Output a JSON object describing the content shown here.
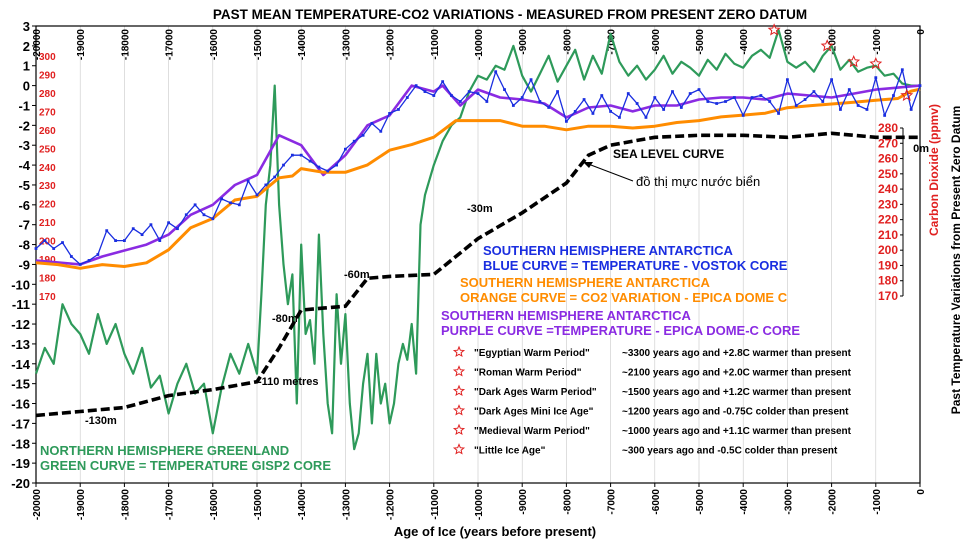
{
  "chart_data": {
    "type": "line",
    "title": "PAST MEAN TEMPERATURE-CO2  VARIATIONS - MEASURED FROM PRESENT  ZERO DATUM",
    "xlabel": "Age of Ice (years before present)",
    "xlim": [
      -20000,
      0
    ],
    "x_ticks": [
      "-20000",
      "-19000",
      "-18000",
      "-17000",
      "-16000",
      "-15000",
      "-14000",
      "-13000",
      "-12000",
      "-11000",
      "-10000",
      "-9000",
      "-8000",
      "-7000",
      "-6000",
      "-5000",
      "-4000",
      "-3000",
      "-2000",
      "-1000",
      "0"
    ],
    "y_left": {
      "label": "",
      "ylim": [
        -20,
        3
      ],
      "ticks": [
        "3",
        "2",
        "1",
        "0",
        "-1",
        "-2",
        "-3",
        "-4",
        "-5",
        "-6",
        "-7",
        "-8",
        "-9",
        "-10",
        "-11",
        "-12",
        "-13",
        "-14",
        "-15",
        "-16",
        "-17",
        "-18",
        "-19",
        "-20"
      ]
    },
    "y_co2": {
      "label": "Carbon Dioxide (ppmv)",
      "ylim": [
        170,
        300
      ],
      "ticks": [
        "300",
        "290",
        "280",
        "270",
        "260",
        "250",
        "240",
        "230",
        "220",
        "210",
        "200",
        "190",
        "180",
        "170"
      ]
    },
    "y_co2_right": {
      "ticks": [
        "280",
        "270",
        "260",
        "250",
        "240",
        "230",
        "220",
        "210",
        "200",
        "190",
        "180",
        "170"
      ]
    },
    "y_right_label": "Past  Temperature  Variations  from  Present  Zero  Datum",
    "series": [
      {
        "name": "Greenland GISP2 temperature",
        "color": "#2e9a5a",
        "x": [
          -20000,
          -19800,
          -19600,
          -19400,
          -19200,
          -19000,
          -18800,
          -18600,
          -18400,
          -18200,
          -18000,
          -17800,
          -17600,
          -17400,
          -17200,
          -17000,
          -16800,
          -16600,
          -16400,
          -16200,
          -16000,
          -15800,
          -15600,
          -15400,
          -15200,
          -15000,
          -14900,
          -14800,
          -14700,
          -14600,
          -14500,
          -14400,
          -14300,
          -14200,
          -14100,
          -14000,
          -13900,
          -13800,
          -13700,
          -13600,
          -13500,
          -13400,
          -13300,
          -13200,
          -13100,
          -13000,
          -12900,
          -12800,
          -12700,
          -12600,
          -12500,
          -12400,
          -12300,
          -12200,
          -12100,
          -12000,
          -11900,
          -11800,
          -11700,
          -11600,
          -11500,
          -11400,
          -11300,
          -11200,
          -11000,
          -10800,
          -10600,
          -10400,
          -10200,
          -10000,
          -9800,
          -9600,
          -9400,
          -9200,
          -9000,
          -8800,
          -8600,
          -8400,
          -8200,
          -8000,
          -7800,
          -7600,
          -7400,
          -7200,
          -7000,
          -6800,
          -6600,
          -6400,
          -6200,
          -6000,
          -5800,
          -5600,
          -5400,
          -5200,
          -5000,
          -4800,
          -4600,
          -4400,
          -4200,
          -4000,
          -3800,
          -3600,
          -3400,
          -3200,
          -3000,
          -2800,
          -2600,
          -2400,
          -2200,
          -2000,
          -1800,
          -1600,
          -1400,
          -1200,
          -1000,
          -800,
          -600,
          -400,
          -200,
          0
        ],
        "y": [
          -14.5,
          -13.2,
          -14.0,
          -11.0,
          -12.0,
          -12.5,
          -13.5,
          -11.5,
          -13.0,
          -12.0,
          -13.5,
          -14.5,
          -13.2,
          -15.2,
          -14.6,
          -16.5,
          -15.0,
          -14.0,
          -15.5,
          -15.0,
          -17.5,
          -15.2,
          -13.5,
          -14.5,
          -13.0,
          -14.5,
          -10.5,
          -6.0,
          -4.0,
          0.0,
          -6.0,
          -9.0,
          -11.0,
          -9.5,
          -16.0,
          -8.0,
          -12.5,
          -11.8,
          -14.0,
          -7.5,
          -12.5,
          -16.0,
          -17.5,
          -10.5,
          -14.0,
          -11.5,
          -16.0,
          -18.3,
          -17.5,
          -15.0,
          -13.5,
          -17.0,
          -13.5,
          -16.0,
          -15.0,
          -17.0,
          -16.0,
          -14.0,
          -13.0,
          -13.8,
          -12.0,
          -14.5,
          -7.0,
          -5.5,
          -4.0,
          -2.8,
          -2.0,
          -1.6,
          -0.3,
          0.5,
          0.3,
          1.0,
          0.8,
          2.0,
          0.5,
          -0.3,
          0.6,
          1.5,
          0.2,
          1.0,
          1.8,
          0.3,
          1.5,
          0.6,
          2.6,
          1.2,
          0.5,
          1.0,
          0.3,
          0.8,
          1.5,
          0.6,
          1.2,
          0.9,
          0.5,
          1.3,
          0.8,
          1.6,
          1.1,
          0.9,
          1.5,
          1.8,
          1.4,
          2.8,
          1.2,
          0.9,
          1.2,
          0.7,
          1.5,
          2.0,
          0.8,
          1.3,
          0.7,
          0.9,
          1.0,
          0.5,
          0.6,
          0.1,
          0.0,
          0.0
        ]
      },
      {
        "name": "Vostok core temperature",
        "color": "#1a2ee0",
        "x": [
          -20000,
          -19800,
          -19600,
          -19400,
          -19200,
          -19000,
          -18800,
          -18600,
          -18400,
          -18200,
          -18000,
          -17800,
          -17600,
          -17400,
          -17200,
          -17000,
          -16800,
          -16600,
          -16400,
          -16200,
          -16000,
          -15800,
          -15600,
          -15400,
          -15200,
          -15000,
          -14800,
          -14600,
          -14400,
          -14200,
          -14000,
          -13800,
          -13600,
          -13400,
          -13200,
          -13000,
          -12800,
          -12600,
          -12400,
          -12200,
          -12000,
          -11800,
          -11600,
          -11400,
          -11200,
          -11000,
          -10800,
          -10600,
          -10400,
          -10200,
          -10000,
          -9800,
          -9600,
          -9400,
          -9200,
          -9000,
          -8800,
          -8600,
          -8400,
          -8200,
          -8000,
          -7800,
          -7600,
          -7400,
          -7200,
          -7000,
          -6800,
          -6600,
          -6400,
          -6200,
          -6000,
          -5800,
          -5600,
          -5400,
          -5200,
          -5000,
          -4800,
          -4600,
          -4400,
          -4200,
          -4000,
          -3800,
          -3600,
          -3400,
          -3200,
          -3000,
          -2800,
          -2600,
          -2400,
          -2200,
          -2000,
          -1800,
          -1600,
          -1400,
          -1200,
          -1000,
          -800,
          -600,
          -400,
          -200,
          0
        ],
        "y": [
          -8.2,
          -7.8,
          -8.2,
          -7.9,
          -8.6,
          -9.0,
          -8.8,
          -8.5,
          -7.3,
          -7.8,
          -7.8,
          -7.2,
          -7.5,
          -7.0,
          -7.8,
          -6.9,
          -7.2,
          -6.5,
          -6.0,
          -6.5,
          -6.7,
          -5.7,
          -5.9,
          -6.0,
          -4.8,
          -5.5,
          -5.0,
          -4.6,
          -4.0,
          -3.5,
          -3.5,
          -3.8,
          -4.1,
          -4.3,
          -4.0,
          -3.2,
          -2.8,
          -2.5,
          -1.9,
          -2.3,
          -1.4,
          -1.2,
          -0.6,
          0.0,
          -0.3,
          -0.5,
          0.2,
          -0.5,
          -0.8,
          -0.3,
          -0.4,
          -0.8,
          0.7,
          -0.2,
          -1.0,
          -0.6,
          0.3,
          -0.8,
          -1.1,
          -0.3,
          -1.8,
          -1.3,
          -0.7,
          -1.4,
          -0.5,
          -1.3,
          -1.6,
          -0.4,
          -0.9,
          -1.6,
          -0.6,
          -1.2,
          -0.3,
          -1.1,
          -0.4,
          -0.2,
          -0.8,
          -0.9,
          -0.8,
          -0.6,
          -1.5,
          -0.6,
          -0.5,
          -0.8,
          -1.4,
          0.3,
          -1.0,
          -0.7,
          -0.3,
          -0.8,
          0.3,
          -1.2,
          -0.2,
          -1.0,
          -1.2,
          0.4,
          -1.5,
          -0.5,
          0.8,
          -1.2,
          0.0
        ]
      },
      {
        "name": "EPICA Dome C temperature",
        "color": "#8a2be2",
        "x": [
          -20000,
          -19000,
          -18500,
          -18000,
          -17500,
          -17000,
          -16500,
          -16000,
          -15500,
          -15000,
          -14500,
          -14000,
          -13500,
          -13000,
          -12500,
          -12000,
          -11500,
          -11000,
          -10800,
          -10600,
          -10400,
          -10200,
          -10000,
          -9500,
          -9000,
          -8500,
          -8000,
          -7500,
          -7000,
          -6500,
          -6000,
          -5500,
          -5000,
          -4500,
          -4000,
          -3500,
          -3000,
          -2500,
          -2000,
          -1500,
          -1000,
          -500,
          0
        ],
        "y": [
          -8.8,
          -9.0,
          -8.6,
          -8.3,
          -8.0,
          -7.5,
          -6.5,
          -6.0,
          -5.0,
          -4.5,
          -2.5,
          -3.0,
          -4.5,
          -3.5,
          -2.0,
          -1.5,
          0.0,
          -0.3,
          0.0,
          -0.5,
          -1.0,
          -0.6,
          -0.2,
          -0.6,
          -0.7,
          -0.9,
          -1.6,
          -1.1,
          -1.0,
          -1.3,
          -1.0,
          -1.0,
          -0.7,
          -0.6,
          -0.6,
          -0.7,
          -0.4,
          -0.5,
          -0.6,
          -0.4,
          -0.2,
          -0.1,
          0.0
        ]
      },
      {
        "name": "EPICA Dome C CO2 (ppmv)",
        "color": "#ff8c00",
        "x": [
          -20000,
          -19500,
          -19000,
          -18500,
          -18000,
          -17500,
          -17000,
          -16500,
          -16000,
          -15500,
          -15000,
          -14800,
          -14500,
          -14200,
          -14000,
          -13500,
          -13000,
          -12500,
          -12000,
          -11500,
          -11000,
          -10500,
          -10000,
          -9500,
          -9000,
          -8500,
          -8000,
          -7500,
          -7000,
          -6500,
          -6000,
          -5500,
          -5000,
          -4500,
          -4000,
          -3500,
          -3000,
          -2500,
          -2000,
          -1500,
          -1000,
          -500,
          -200,
          0
        ],
        "y": [
          188,
          187,
          185,
          187,
          186,
          188,
          195,
          207,
          212,
          222,
          224,
          228,
          234,
          235,
          239,
          237,
          237,
          241,
          249,
          252,
          256,
          265,
          265,
          265,
          262,
          262,
          260,
          262,
          262,
          261,
          262,
          264,
          265,
          267,
          268,
          269,
          272,
          273,
          274,
          275,
          276,
          277,
          281,
          282
        ]
      },
      {
        "name": "Sea level (relative, temperature axis units)",
        "color": "#000000",
        "x": [
          -20000,
          -19000,
          -18000,
          -17000,
          -16000,
          -15000,
          -14500,
          -14000,
          -13500,
          -13000,
          -12500,
          -12000,
          -11000,
          -10000,
          -9000,
          -8000,
          -7500,
          -7000,
          -6500,
          -6000,
          -5000,
          -4000,
          -3000,
          -2000,
          -1000,
          0
        ],
        "y": [
          -16.6,
          -16.4,
          -16.2,
          -15.6,
          -15.3,
          -14.9,
          -13.2,
          -11.3,
          -11.2,
          -11.1,
          -9.7,
          -9.6,
          -9.5,
          -7.7,
          -6.4,
          -4.9,
          -3.5,
          -3.0,
          -2.8,
          -2.6,
          -2.5,
          -2.5,
          -2.6,
          -2.4,
          -2.6,
          -2.6
        ]
      }
    ],
    "annotations": [
      {
        "label": "SEA   LEVEL  CURVE"
      },
      {
        "label": "đồ thị mực nước biển"
      },
      {
        "label": "0m"
      },
      {
        "label": "-30m"
      },
      {
        "label": "-60m"
      },
      {
        "label": "-80m"
      },
      {
        "label": "-110 metres"
      },
      {
        "label": "-130m"
      }
    ],
    "legend": [
      {
        "line1": "SOUTHERN   HEMISPHERE   ANTARCTICA",
        "line2": "BLUE CURVE = TEMPERATURE  -  VOSTOK CORE",
        "color": "#1a2ee0"
      },
      {
        "line1": "SOUTHERN   HEMISPHERE   ANTARCTICA",
        "line2": "ORANGE  CURVE = CO2 VARIATION  -  EPICA DOME C",
        "color": "#ff8c00"
      },
      {
        "line1": "SOUTHERN   HEMISPHERE   ANTARCTICA",
        "line2": "PURPLE CURVE =TEMPERATURE - EPICA DOME-C CORE",
        "color": "#8a2be2"
      },
      {
        "line1": "NORTHERN   HEMISPHERE  GREENLAND",
        "line2": "GREEN  CURVE = TEMPERATURE  GISP2  CORE",
        "color": "#2e9a5a"
      }
    ],
    "periods": [
      {
        "name": "\"Egyptian Warm Period\"",
        "text": "~3300  years  ago  and +2.8C  warmer than  present",
        "year": -3300,
        "temp": 2.8
      },
      {
        "name": "\"Roman Warm Period\"",
        "text": "~2100  years  ago  and +2.0C  warmer  than  present",
        "year": -2100,
        "temp": 2.0
      },
      {
        "name": "\"Dark Ages Warm Period\"",
        "text": "~1500  years  ago  and +1.2C  warmer  than  present",
        "year": -1500,
        "temp": 1.2
      },
      {
        "name": "\"Dark Ages Mini Ice Age\"",
        "text": "~1200  years  ago  and -0.75C  colder than  present",
        "year": -1200,
        "temp": -0.75
      },
      {
        "name": "\"Medieval Warm Period\"",
        "text": "~1000  years  ago  and +1.1C  warmer  than  present",
        "year": -1000,
        "temp": 1.1
      },
      {
        "name": "\"Little Ice Age\"",
        "text": "~300  years  ago  and -0.5C  colder than  present",
        "year": -300,
        "temp": -0.5
      }
    ],
    "colors": {
      "green": "#2e9a5a",
      "blue": "#1a2ee0",
      "purple": "#8a2be2",
      "orange": "#ff8c00",
      "red": "#e02020",
      "black": "#000000"
    }
  }
}
